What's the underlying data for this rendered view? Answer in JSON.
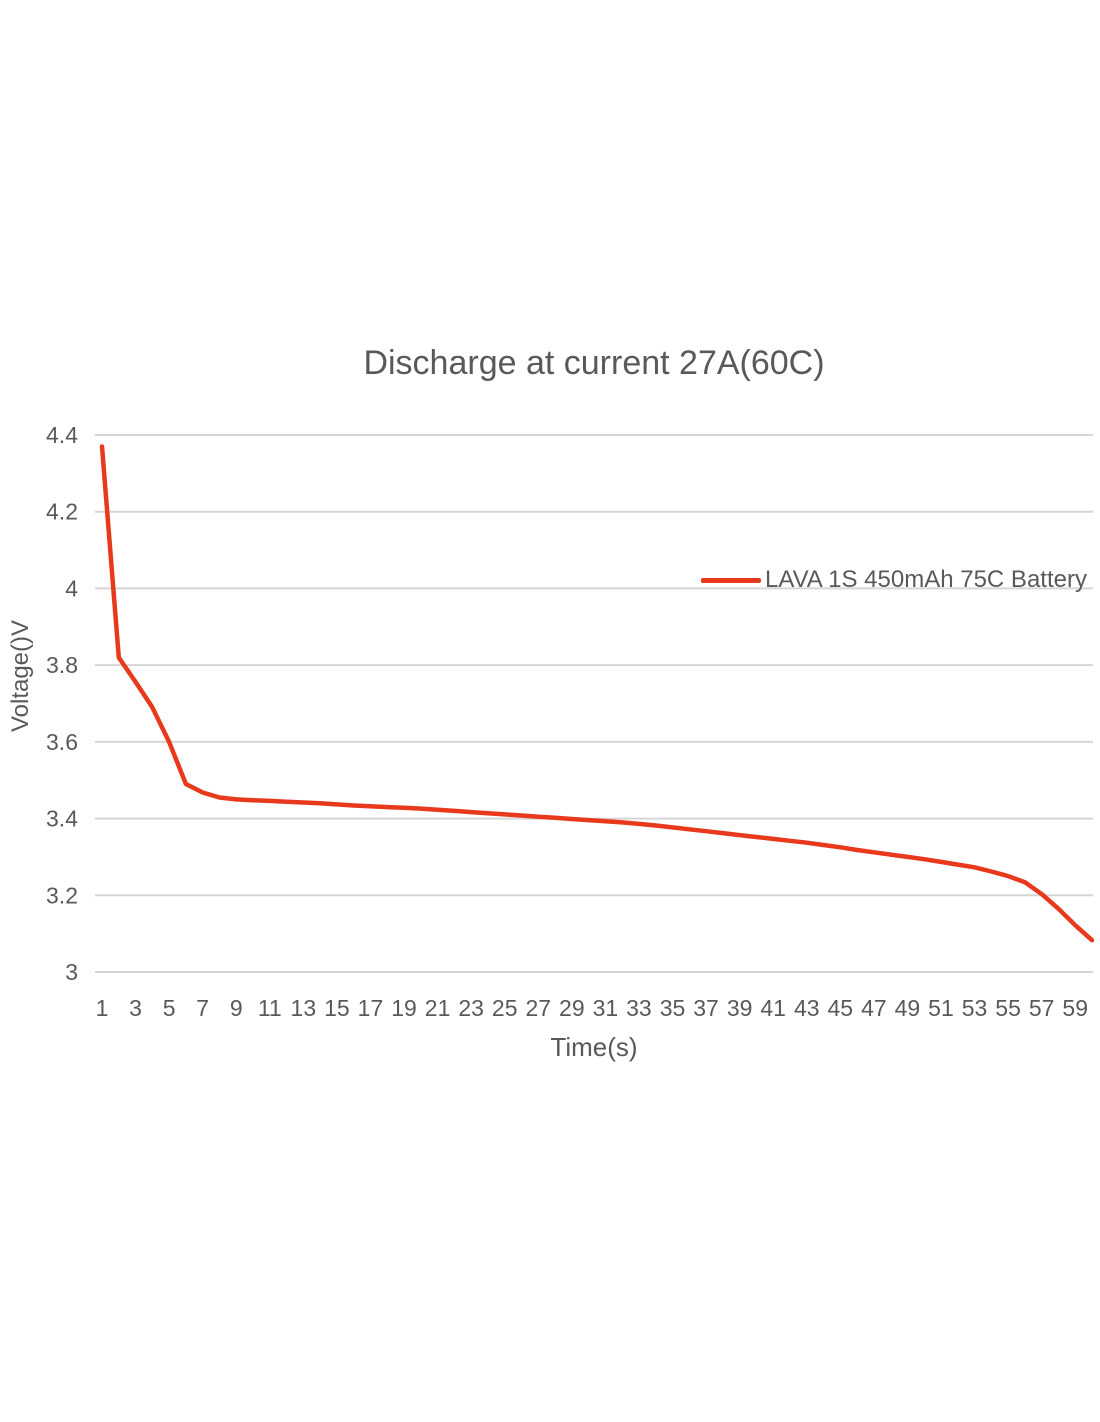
{
  "chart_data": {
    "type": "line",
    "title": "Discharge at current 27A(60C)",
    "xlabel": "Time(s)",
    "ylabel": "Voltage()V",
    "xlim": [
      1,
      60
    ],
    "ylim": [
      3.0,
      4.4
    ],
    "grid": "horizontal",
    "legend_position": "inside-top-right",
    "x_ticks": [
      1,
      3,
      5,
      7,
      9,
      11,
      13,
      15,
      17,
      19,
      21,
      23,
      25,
      27,
      29,
      31,
      33,
      35,
      37,
      39,
      41,
      43,
      45,
      47,
      49,
      51,
      53,
      55,
      57,
      59
    ],
    "y_tick_values": [
      3,
      3.2,
      3.4,
      3.6,
      3.8,
      4,
      4.2,
      4.4
    ],
    "y_tick_labels": [
      "3",
      "3.2",
      "3.4",
      "3.6",
      "3.8",
      "4",
      "4.2",
      "4.4"
    ],
    "series": [
      {
        "name": "LAVA 1S 450mAh 75C Battery",
        "color": "#e8391d",
        "x": [
          1,
          2,
          3,
          4,
          5,
          6,
          7,
          8,
          9,
          10,
          11,
          12,
          13,
          14,
          15,
          16,
          17,
          18,
          19,
          20,
          21,
          22,
          23,
          24,
          25,
          26,
          27,
          28,
          29,
          30,
          31,
          32,
          33,
          34,
          35,
          36,
          37,
          38,
          39,
          40,
          41,
          42,
          43,
          44,
          45,
          46,
          47,
          48,
          49,
          50,
          51,
          52,
          53,
          54,
          55,
          56,
          57,
          58,
          59,
          60
        ],
        "values": [
          4.37,
          3.82,
          3.756,
          3.69,
          3.6,
          3.49,
          3.468,
          3.455,
          3.45,
          3.448,
          3.446,
          3.444,
          3.442,
          3.44,
          3.437,
          3.434,
          3.432,
          3.43,
          3.428,
          3.426,
          3.423,
          3.42,
          3.417,
          3.414,
          3.411,
          3.408,
          3.405,
          3.402,
          3.399,
          3.396,
          3.393,
          3.39,
          3.386,
          3.382,
          3.377,
          3.372,
          3.367,
          3.362,
          3.357,
          3.352,
          3.347,
          3.342,
          3.337,
          3.331,
          3.325,
          3.318,
          3.312,
          3.306,
          3.3,
          3.294,
          3.287,
          3.28,
          3.273,
          3.262,
          3.25,
          3.234,
          3.203,
          3.165,
          3.122,
          3.083
        ]
      }
    ],
    "colors": {
      "series": "#e8391d",
      "gridline": "#d6d6d6",
      "text": "#595959",
      "background": "#ffffff"
    }
  }
}
